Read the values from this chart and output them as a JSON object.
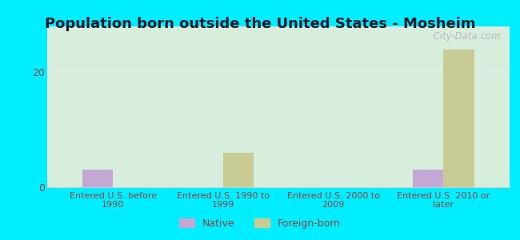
{
  "title": "Population born outside the United States - Mosheim",
  "categories": [
    "Entered U.S. before\n1990",
    "Entered U.S. 1990 to\n1999",
    "Entered U.S. 2000 to\n2009",
    "Entered U.S. 2010 or\nlater"
  ],
  "native_values": [
    3,
    0,
    0,
    3
  ],
  "foreign_values": [
    0,
    6,
    0,
    24
  ],
  "native_color": "#c4a8d4",
  "foreign_color": "#c8cc94",
  "background_outer": "#00eeff",
  "background_inner": "#d8eedd",
  "bar_width": 0.28,
  "ylim": [
    0,
    28
  ],
  "yticks": [
    0,
    20
  ],
  "legend_native": "Native",
  "legend_foreign": "Foreign-born",
  "watermark": "  City-Data.com",
  "title_fontsize": 13,
  "tick_label_color": "#884444",
  "axis_label_color": "#884444",
  "grid_color": "#e8e8e8",
  "grid_linewidth": 0.8
}
